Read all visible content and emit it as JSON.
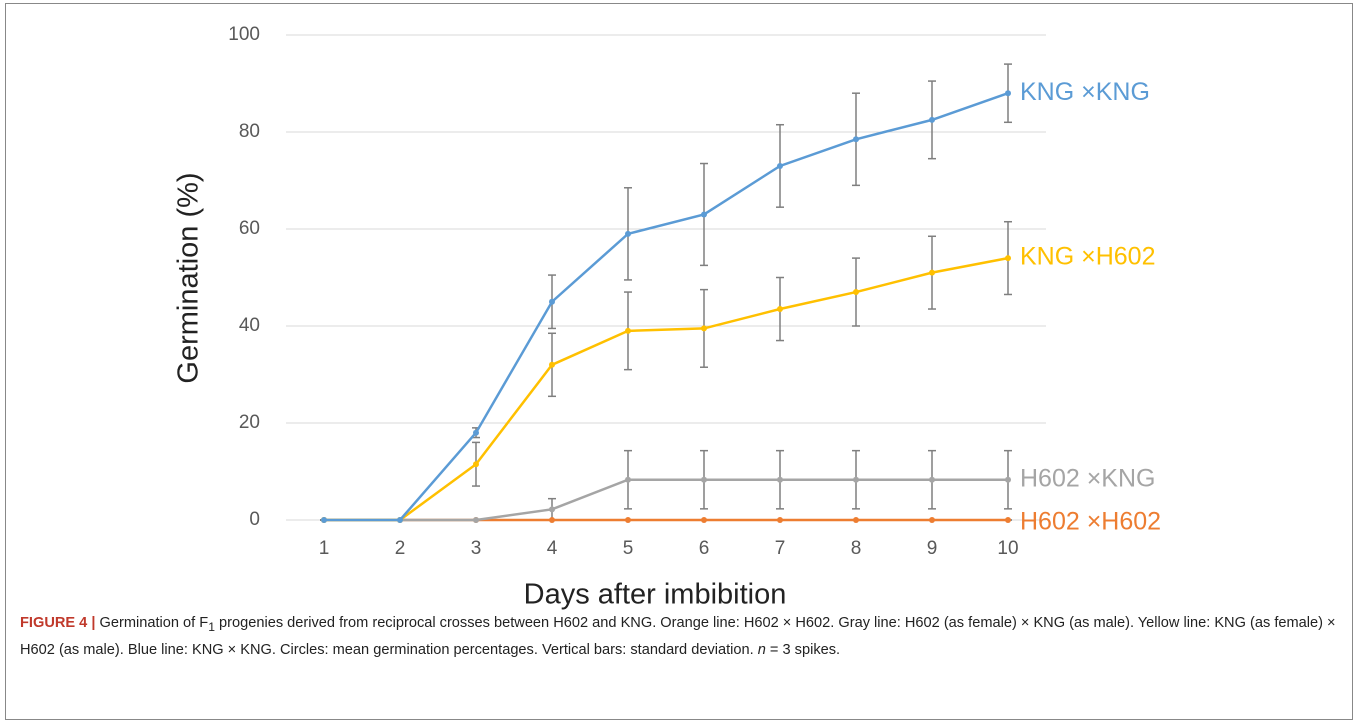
{
  "chart_data": {
    "type": "line",
    "y_label": "Germination (%)",
    "x_label": "Days after imbibition",
    "categories": [
      "1",
      "2",
      "3",
      "4",
      "5",
      "6",
      "7",
      "8",
      "9",
      "10"
    ],
    "ylim": [
      0,
      100
    ],
    "yticks": [
      0,
      20,
      40,
      60,
      80,
      100
    ],
    "grid": true,
    "series": [
      {
        "name": "KNG ×KNG",
        "color": "#5b9bd5",
        "values": [
          0,
          0,
          18,
          45,
          59,
          63,
          73,
          78.5,
          82.5,
          88
        ],
        "errors": [
          0,
          0,
          1,
          5.5,
          9.5,
          10.5,
          8.5,
          9.5,
          8,
          6
        ]
      },
      {
        "name": "KNG ×H602",
        "color": "#ffc000",
        "values": [
          0,
          0,
          11.5,
          32,
          39,
          39.5,
          43.5,
          47,
          51,
          54
        ],
        "errors": [
          0,
          0,
          4.5,
          6.5,
          8,
          8,
          6.5,
          7,
          7.5,
          7.5
        ]
      },
      {
        "name": "H602 ×KNG",
        "color": "#a5a5a5",
        "values": [
          0,
          0,
          0,
          2.2,
          8.3,
          8.3,
          8.3,
          8.3,
          8.3,
          8.3
        ],
        "errors": [
          0,
          0,
          0,
          2.2,
          6,
          6,
          6,
          6,
          6,
          6
        ]
      },
      {
        "name": "H602 ×H602",
        "color": "#ed7d31",
        "values": [
          0,
          0,
          0,
          0,
          0,
          0,
          0,
          0,
          0,
          0
        ],
        "errors": [
          0,
          0,
          0,
          0,
          0,
          0,
          0,
          0,
          0,
          0
        ]
      }
    ]
  },
  "caption": {
    "label": "FIGURE 4 |",
    "text_1": " Germination of F",
    "subscript": "1",
    "text_2": " progenies derived from reciprocal crosses between H602 and KNG. Orange line: H602 × H602. Gray line: H602 (as female) × KNG (as male). Yellow line: KNG (as female) × H602 (as male). Blue line: KNG × KNG. Circles: mean germination percentages. Vertical bars: standard deviation. ",
    "italic": "n",
    "text_3": " = 3 spikes."
  }
}
